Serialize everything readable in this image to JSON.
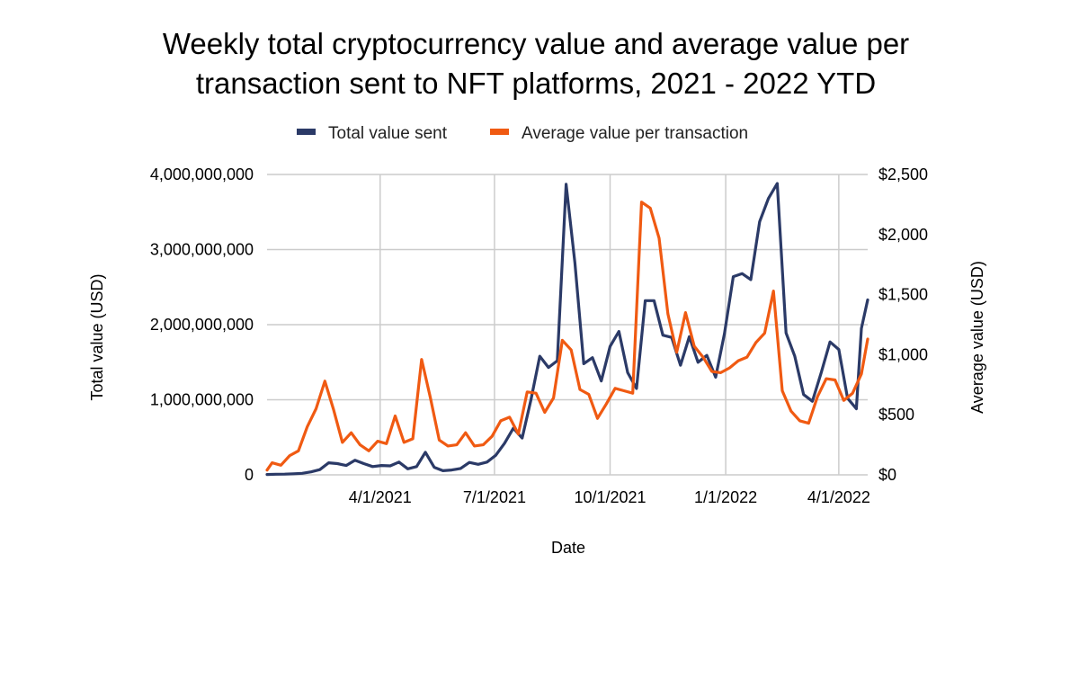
{
  "chart_data": {
    "type": "line",
    "title_lines": [
      "Weekly total cryptocurrency value and average value per",
      "transaction sent to NFT platforms, 2021 - 2022 YTD"
    ],
    "xlabel": "Date",
    "ylabel_left": "Total value (USD)",
    "ylabel_right": "Average value (USD)",
    "legend_position": "top",
    "grid": true,
    "x_start": "2021-01-01",
    "x_end": "2022-04-24",
    "x_ticks": [
      {
        "date": "2021-04-01",
        "label": "4/1/2021"
      },
      {
        "date": "2021-07-01",
        "label": "7/1/2021"
      },
      {
        "date": "2021-10-01",
        "label": "10/1/2021"
      },
      {
        "date": "2022-01-01",
        "label": "1/1/2022"
      },
      {
        "date": "2022-04-01",
        "label": "4/1/2022"
      }
    ],
    "left_axis": {
      "min": 0,
      "max": 4000000000,
      "ticks": [
        {
          "value": 0,
          "label": "0"
        },
        {
          "value": 1000000000,
          "label": "1,000,000,000"
        },
        {
          "value": 2000000000,
          "label": "2,000,000,000"
        },
        {
          "value": 3000000000,
          "label": "3,000,000,000"
        },
        {
          "value": 4000000000,
          "label": "4,000,000,000"
        }
      ]
    },
    "right_axis": {
      "min": 0,
      "max": 2500,
      "ticks": [
        {
          "value": 0,
          "label": "$0"
        },
        {
          "value": 500,
          "label": "$500"
        },
        {
          "value": 1000,
          "label": "$1,000"
        },
        {
          "value": 1500,
          "label": "$1,500"
        },
        {
          "value": 2000,
          "label": "$2,000"
        },
        {
          "value": 2500,
          "label": "$2,500"
        }
      ]
    },
    "series": [
      {
        "name": "Total value sent",
        "axis": "left",
        "color": "#2b3a67",
        "points": [
          [
            "2021-01-01",
            5000000
          ],
          [
            "2021-01-08",
            8000000
          ],
          [
            "2021-01-15",
            10000000
          ],
          [
            "2021-01-22",
            14000000
          ],
          [
            "2021-01-29",
            20000000
          ],
          [
            "2021-02-05",
            40000000
          ],
          [
            "2021-02-12",
            70000000
          ],
          [
            "2021-02-19",
            160000000
          ],
          [
            "2021-02-26",
            150000000
          ],
          [
            "2021-03-05",
            125000000
          ],
          [
            "2021-03-12",
            195000000
          ],
          [
            "2021-03-19",
            150000000
          ],
          [
            "2021-03-26",
            110000000
          ],
          [
            "2021-04-02",
            125000000
          ],
          [
            "2021-04-09",
            120000000
          ],
          [
            "2021-04-16",
            170000000
          ],
          [
            "2021-04-23",
            80000000
          ],
          [
            "2021-04-30",
            110000000
          ],
          [
            "2021-05-07",
            300000000
          ],
          [
            "2021-05-14",
            100000000
          ],
          [
            "2021-05-21",
            55000000
          ],
          [
            "2021-05-28",
            65000000
          ],
          [
            "2021-06-04",
            85000000
          ],
          [
            "2021-06-11",
            165000000
          ],
          [
            "2021-06-18",
            140000000
          ],
          [
            "2021-06-25",
            170000000
          ],
          [
            "2021-07-02",
            260000000
          ],
          [
            "2021-07-09",
            420000000
          ],
          [
            "2021-07-16",
            620000000
          ],
          [
            "2021-07-23",
            490000000
          ],
          [
            "2021-07-30",
            1000000000
          ],
          [
            "2021-08-06",
            1580000000
          ],
          [
            "2021-08-13",
            1430000000
          ],
          [
            "2021-08-20",
            1520000000
          ],
          [
            "2021-08-27",
            3870000000
          ],
          [
            "2021-09-03",
            2820000000
          ],
          [
            "2021-09-10",
            1480000000
          ],
          [
            "2021-09-17",
            1560000000
          ],
          [
            "2021-09-24",
            1250000000
          ],
          [
            "2021-10-01",
            1710000000
          ],
          [
            "2021-10-08",
            1910000000
          ],
          [
            "2021-10-15",
            1360000000
          ],
          [
            "2021-10-22",
            1150000000
          ],
          [
            "2021-10-29",
            2320000000
          ],
          [
            "2021-11-05",
            2320000000
          ],
          [
            "2021-11-12",
            1860000000
          ],
          [
            "2021-11-19",
            1830000000
          ],
          [
            "2021-11-26",
            1460000000
          ],
          [
            "2021-12-03",
            1840000000
          ],
          [
            "2021-12-10",
            1500000000
          ],
          [
            "2021-12-17",
            1590000000
          ],
          [
            "2021-12-24",
            1300000000
          ],
          [
            "2021-12-31",
            1880000000
          ],
          [
            "2022-01-07",
            2640000000
          ],
          [
            "2022-01-14",
            2680000000
          ],
          [
            "2022-01-21",
            2600000000
          ],
          [
            "2022-01-28",
            3370000000
          ],
          [
            "2022-02-04",
            3680000000
          ],
          [
            "2022-02-11",
            3880000000
          ],
          [
            "2022-02-18",
            1890000000
          ],
          [
            "2022-02-25",
            1580000000
          ],
          [
            "2022-03-04",
            1070000000
          ],
          [
            "2022-03-11",
            980000000
          ],
          [
            "2022-03-18",
            1360000000
          ],
          [
            "2022-03-25",
            1770000000
          ],
          [
            "2022-04-01",
            1670000000
          ],
          [
            "2022-04-08",
            1020000000
          ],
          [
            "2022-04-15",
            880000000
          ],
          [
            "2022-04-19",
            1950000000
          ],
          [
            "2022-04-24",
            2330000000
          ]
        ]
      },
      {
        "name": "Average value per transaction",
        "axis": "right",
        "color": "#f05a12",
        "points": [
          [
            "2021-01-01",
            40
          ],
          [
            "2021-01-05",
            100
          ],
          [
            "2021-01-12",
            80
          ],
          [
            "2021-01-19",
            160
          ],
          [
            "2021-01-26",
            200
          ],
          [
            "2021-02-02",
            400
          ],
          [
            "2021-02-09",
            550
          ],
          [
            "2021-02-16",
            780
          ],
          [
            "2021-02-23",
            540
          ],
          [
            "2021-03-02",
            270
          ],
          [
            "2021-03-09",
            350
          ],
          [
            "2021-03-16",
            250
          ],
          [
            "2021-03-23",
            200
          ],
          [
            "2021-03-30",
            280
          ],
          [
            "2021-04-06",
            260
          ],
          [
            "2021-04-13",
            490
          ],
          [
            "2021-04-20",
            270
          ],
          [
            "2021-04-27",
            300
          ],
          [
            "2021-05-04",
            960
          ],
          [
            "2021-05-11",
            640
          ],
          [
            "2021-05-18",
            290
          ],
          [
            "2021-05-25",
            240
          ],
          [
            "2021-06-01",
            250
          ],
          [
            "2021-06-08",
            350
          ],
          [
            "2021-06-15",
            240
          ],
          [
            "2021-06-22",
            250
          ],
          [
            "2021-06-29",
            320
          ],
          [
            "2021-07-06",
            450
          ],
          [
            "2021-07-13",
            480
          ],
          [
            "2021-07-20",
            340
          ],
          [
            "2021-07-27",
            690
          ],
          [
            "2021-08-03",
            680
          ],
          [
            "2021-08-10",
            520
          ],
          [
            "2021-08-17",
            640
          ],
          [
            "2021-08-24",
            1120
          ],
          [
            "2021-08-31",
            1040
          ],
          [
            "2021-09-07",
            710
          ],
          [
            "2021-09-14",
            670
          ],
          [
            "2021-09-21",
            470
          ],
          [
            "2021-09-28",
            590
          ],
          [
            "2021-10-05",
            720
          ],
          [
            "2021-10-12",
            700
          ],
          [
            "2021-10-19",
            680
          ],
          [
            "2021-10-26",
            2270
          ],
          [
            "2021-11-02",
            2220
          ],
          [
            "2021-11-09",
            1970
          ],
          [
            "2021-11-16",
            1340
          ],
          [
            "2021-11-23",
            1020
          ],
          [
            "2021-11-30",
            1350
          ],
          [
            "2021-12-07",
            1070
          ],
          [
            "2021-12-14",
            980
          ],
          [
            "2021-12-21",
            860
          ],
          [
            "2021-12-28",
            850
          ],
          [
            "2022-01-04",
            890
          ],
          [
            "2022-01-11",
            950
          ],
          [
            "2022-01-18",
            980
          ],
          [
            "2022-01-25",
            1100
          ],
          [
            "2022-02-01",
            1180
          ],
          [
            "2022-02-08",
            1530
          ],
          [
            "2022-02-15",
            700
          ],
          [
            "2022-02-22",
            530
          ],
          [
            "2022-03-01",
            450
          ],
          [
            "2022-03-08",
            430
          ],
          [
            "2022-03-15",
            650
          ],
          [
            "2022-03-22",
            800
          ],
          [
            "2022-03-29",
            790
          ],
          [
            "2022-04-05",
            620
          ],
          [
            "2022-04-12",
            680
          ],
          [
            "2022-04-19",
            840
          ],
          [
            "2022-04-24",
            1130
          ]
        ]
      }
    ]
  }
}
